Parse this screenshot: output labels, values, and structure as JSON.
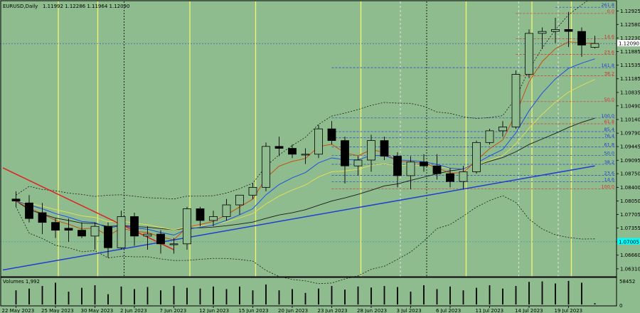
{
  "header": {
    "symbol": "EURUSD,Daily",
    "ohlc": "1.11992 1.12286 1.11964 1.12090"
  },
  "volume_label": "Volumes 1,992",
  "volume_axis": [
    "58452",
    "0"
  ],
  "current_price": "1.12090",
  "highlight_price": "1.07005",
  "colors": {
    "background": "#8fbc8f",
    "bull": "#8fbc8f",
    "bear": "#000000",
    "candle_outline": "#000000",
    "ma_red": "#cc4400",
    "ma_blue": "#1e4fe0",
    "ma_yellow": "#e8e050",
    "ma_dark": "#1a1a1a",
    "trend_blue": "#1f3fd0",
    "trend_red": "#e02020",
    "fib_red": "#d23030",
    "fib_blue": "#2040d0",
    "vline": "#f5f570",
    "highlight": "#00ffff"
  },
  "chart_data": {
    "type": "candlestick",
    "price_axis": {
      "ticks": [
        "1.12925",
        "1.12580",
        "1.12230",
        "1.11885",
        "1.11535",
        "1.11185",
        "1.10835",
        "1.10490",
        "1.10140",
        "1.09790",
        "1.09445",
        "1.09095",
        "1.08750",
        "1.08400",
        "1.08050",
        "1.07705",
        "1.07355",
        "1.07005",
        "1.06660",
        "1.06310"
      ],
      "range": [
        1.0618,
        1.1306
      ]
    },
    "date_axis": [
      "22 May 2023",
      "25 May 2023",
      "30 May 2023",
      "2 Jun 2023",
      "7 Jun 2023",
      "12 Jun 2023",
      "15 Jun 2023",
      "20 Jun 2023",
      "23 Jun 2023",
      "28 Jun 2023",
      "3 Jul 2023",
      "6 Jul 2023",
      "11 Jul 2023",
      "14 Jul 2023",
      "19 Jul 2023"
    ],
    "candles": [
      {
        "o": 1.081,
        "h": 1.083,
        "l": 1.079,
        "c": 1.0805
      },
      {
        "o": 1.08,
        "h": 1.082,
        "l": 1.075,
        "c": 1.076
      },
      {
        "o": 1.0775,
        "h": 1.08,
        "l": 1.072,
        "c": 1.075
      },
      {
        "o": 1.075,
        "h": 1.076,
        "l": 1.071,
        "c": 1.073
      },
      {
        "o": 1.0735,
        "h": 1.076,
        "l": 1.07,
        "c": 1.073
      },
      {
        "o": 1.073,
        "h": 1.075,
        "l": 1.071,
        "c": 1.0715
      },
      {
        "o": 1.0715,
        "h": 1.075,
        "l": 1.068,
        "c": 1.074
      },
      {
        "o": 1.074,
        "h": 1.075,
        "l": 1.066,
        "c": 1.0685
      },
      {
        "o": 1.0685,
        "h": 1.078,
        "l": 1.068,
        "c": 1.0765
      },
      {
        "o": 1.0765,
        "h": 1.0775,
        "l": 1.069,
        "c": 1.0715
      },
      {
        "o": 1.0715,
        "h": 1.074,
        "l": 1.068,
        "c": 1.072
      },
      {
        "o": 1.072,
        "h": 1.073,
        "l": 1.067,
        "c": 1.0695
      },
      {
        "o": 1.0695,
        "h": 1.071,
        "l": 1.067,
        "c": 1.0695
      },
      {
        "o": 1.0695,
        "h": 1.079,
        "l": 1.068,
        "c": 1.0785
      },
      {
        "o": 1.0785,
        "h": 1.079,
        "l": 1.074,
        "c": 1.0755
      },
      {
        "o": 1.0755,
        "h": 1.078,
        "l": 1.074,
        "c": 1.0765
      },
      {
        "o": 1.0765,
        "h": 1.081,
        "l": 1.0755,
        "c": 1.0795
      },
      {
        "o": 1.0795,
        "h": 1.082,
        "l": 1.077,
        "c": 1.082
      },
      {
        "o": 1.082,
        "h": 1.085,
        "l": 1.081,
        "c": 1.084
      },
      {
        "o": 1.084,
        "h": 1.0955,
        "l": 1.083,
        "c": 1.0945
      },
      {
        "o": 1.0945,
        "h": 1.097,
        "l": 1.092,
        "c": 1.094
      },
      {
        "o": 1.094,
        "h": 1.095,
        "l": 1.0915,
        "c": 1.0925
      },
      {
        "o": 1.0925,
        "h": 1.094,
        "l": 1.09,
        "c": 1.0925
      },
      {
        "o": 1.0925,
        "h": 1.1,
        "l": 1.0915,
        "c": 1.099
      },
      {
        "o": 1.099,
        "h": 1.101,
        "l": 1.095,
        "c": 1.096
      },
      {
        "o": 1.096,
        "h": 1.097,
        "l": 1.085,
        "c": 1.0895
      },
      {
        "o": 1.0895,
        "h": 1.092,
        "l": 1.087,
        "c": 1.091
      },
      {
        "o": 1.091,
        "h": 1.0975,
        "l": 1.088,
        "c": 1.096
      },
      {
        "o": 1.096,
        "h": 1.097,
        "l": 1.091,
        "c": 1.092
      },
      {
        "o": 1.092,
        "h": 1.093,
        "l": 1.084,
        "c": 1.087
      },
      {
        "o": 1.087,
        "h": 1.092,
        "l": 1.0835,
        "c": 1.0905
      },
      {
        "o": 1.0905,
        "h": 1.0925,
        "l": 1.088,
        "c": 1.0895
      },
      {
        "o": 1.0895,
        "h": 1.0925,
        "l": 1.086,
        "c": 1.0875
      },
      {
        "o": 1.0875,
        "h": 1.089,
        "l": 1.084,
        "c": 1.0855
      },
      {
        "o": 1.0855,
        "h": 1.0895,
        "l": 1.0835,
        "c": 1.088
      },
      {
        "o": 1.088,
        "h": 1.096,
        "l": 1.0875,
        "c": 1.0955
      },
      {
        "o": 1.0955,
        "h": 1.099,
        "l": 1.095,
        "c": 1.0985
      },
      {
        "o": 1.0985,
        "h": 1.101,
        "l": 1.097,
        "c": 1.0995
      },
      {
        "o": 1.0995,
        "h": 1.114,
        "l": 1.099,
        "c": 1.113
      },
      {
        "o": 1.113,
        "h": 1.1245,
        "l": 1.112,
        "c": 1.1235
      },
      {
        "o": 1.1235,
        "h": 1.125,
        "l": 1.1195,
        "c": 1.124
      },
      {
        "o": 1.124,
        "h": 1.1275,
        "l": 1.121,
        "c": 1.1245
      },
      {
        "o": 1.1245,
        "h": 1.129,
        "l": 1.12,
        "c": 1.124
      },
      {
        "o": 1.124,
        "h": 1.125,
        "l": 1.1175,
        "c": 1.1205
      },
      {
        "o": 1.1199,
        "h": 1.1229,
        "l": 1.1196,
        "c": 1.1209
      }
    ],
    "volumes": [
      0.55,
      0.62,
      0.72,
      0.85,
      0.5,
      0.65,
      0.75,
      0.4,
      0.7,
      0.6,
      0.68,
      0.55,
      0.72,
      0.65,
      0.62,
      0.7,
      0.6,
      0.7,
      0.55,
      0.78,
      0.55,
      0.6,
      0.45,
      0.62,
      0.72,
      0.58,
      0.7,
      0.66,
      0.72,
      0.68,
      0.5,
      0.75,
      0.6,
      0.7,
      0.55,
      0.65,
      0.75,
      0.62,
      0.72,
      0.88,
      0.9,
      0.82,
      0.92,
      0.85,
      0.05
    ],
    "fib_levels": [
      {
        "label": "261.8",
        "value": 1.1302,
        "group": "blue",
        "start": 41
      },
      {
        "label": "0.0",
        "value": 1.1286,
        "group": "red",
        "start": 38
      },
      {
        "label": "14.6",
        "value": 1.1221,
        "group": "red",
        "start": 38
      },
      {
        "label": "23.6",
        "value": 1.1181,
        "group": "red",
        "start": 38
      },
      {
        "label": "161.8",
        "value": 1.1147,
        "group": "blue",
        "start": 24
      },
      {
        "label": "38.2",
        "value": 1.1126,
        "group": "red",
        "start": 38
      },
      {
        "label": "50.0",
        "value": 1.106,
        "group": "red",
        "start": 38
      },
      {
        "label": "100.0",
        "value": 1.1018,
        "group": "blue",
        "start": 24
      },
      {
        "label": "61.8",
        "value": 1.1003,
        "group": "red",
        "start": 38
      },
      {
        "label": "85.4",
        "value": 1.0983,
        "group": "blue",
        "start": 24
      },
      {
        "label": "76.4",
        "value": 1.0967,
        "group": "blue",
        "start": 24
      },
      {
        "label": "61.8",
        "value": 1.0944,
        "group": "blue",
        "start": 24
      },
      {
        "label": "50.0",
        "value": 1.0922,
        "group": "blue",
        "start": 24
      },
      {
        "label": "38.2",
        "value": 1.0899,
        "group": "blue",
        "start": 24
      },
      {
        "label": "23.6",
        "value": 1.0871,
        "group": "blue",
        "start": 24
      },
      {
        "label": "14.6",
        "value": 1.0854,
        "group": "blue",
        "start": 24
      },
      {
        "label": "100.0",
        "value": 1.0836,
        "group": "red",
        "start": 24
      }
    ],
    "trendlines": [
      {
        "color": "blue",
        "from": [
          -1,
          1.0628
        ],
        "to": [
          44,
          1.0895
        ]
      },
      {
        "color": "red",
        "from": [
          -1,
          1.089
        ],
        "to": [
          12,
          1.068
        ]
      }
    ]
  }
}
